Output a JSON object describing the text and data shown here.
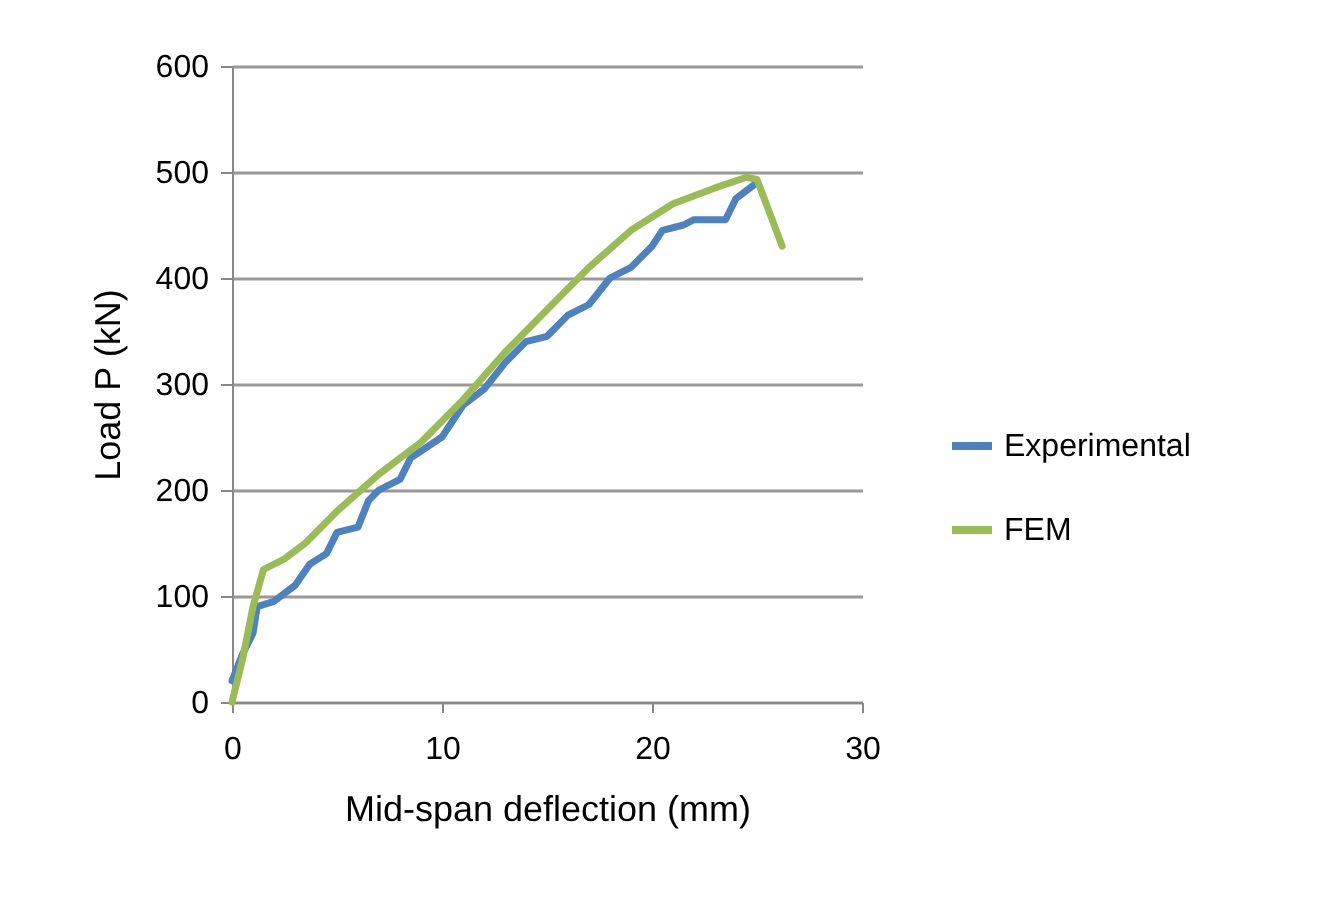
{
  "chart_data": {
    "type": "line",
    "xlabel": "Mid-span deflection (mm)",
    "ylabel": "Load P (kN)",
    "xlim": [
      0,
      30
    ],
    "xticks": [
      0,
      10,
      20,
      30
    ],
    "ylim": [
      0,
      600
    ],
    "yticks": [
      0,
      100,
      200,
      300,
      400,
      500,
      600
    ],
    "grid": "y",
    "legend": "right",
    "marker": "none",
    "line_style": "solid",
    "series": [
      {
        "name": "Experimental",
        "color": "#4f81bd",
        "x": [
          0,
          0.5,
          1,
          1.2,
          2,
          3,
          3.7,
          4.5,
          5,
          6,
          6.5,
          7,
          8,
          8.5,
          10,
          11,
          12,
          13,
          14,
          15,
          16,
          17,
          18,
          19,
          20,
          20.5,
          21.5,
          22,
          23.5,
          24,
          25
        ],
        "values": [
          20,
          45,
          65,
          90,
          95,
          110,
          130,
          140,
          160,
          165,
          190,
          200,
          210,
          230,
          250,
          280,
          295,
          320,
          340,
          345,
          365,
          375,
          400,
          410,
          430,
          445,
          450,
          455,
          455,
          475,
          490
        ]
      },
      {
        "name": "FEM",
        "color": "#9bbb59",
        "x": [
          0,
          0.5,
          1,
          1.5,
          2.5,
          3.5,
          5,
          7,
          9,
          11,
          13,
          15,
          17,
          19,
          21,
          23,
          24.5,
          25,
          26.2
        ],
        "values": [
          0,
          40,
          90,
          125,
          135,
          150,
          180,
          215,
          245,
          285,
          330,
          370,
          410,
          445,
          470,
          485,
          495,
          493,
          430
        ]
      }
    ]
  }
}
